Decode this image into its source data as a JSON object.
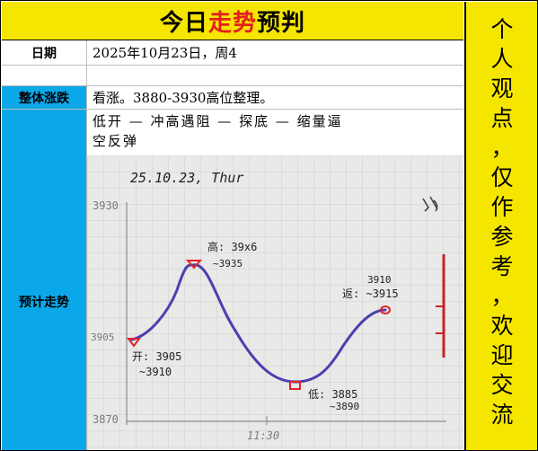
{
  "title": {
    "prefix": "今日",
    "highlight": "走势",
    "suffix": "预判"
  },
  "rows": {
    "date": {
      "label": "日期",
      "value": "2025年10月23日，周4"
    },
    "overall": {
      "label": "整体涨跌",
      "value": "看涨。3880-3930高位整理。"
    },
    "trend": {
      "label": "预计走势",
      "text_line1": "低开 — 冲高遇阻 — 探底 — 缩量逼",
      "text_line2": "空反弹"
    }
  },
  "side_note": [
    "个",
    "人",
    "观",
    "点",
    "，",
    "仅",
    "作",
    "参",
    "考",
    "，",
    "欢",
    "迎",
    "交",
    "流"
  ],
  "sketch": {
    "date_note": "25.10.23, Thur",
    "y_top": "3930",
    "y_mid": "3905",
    "y_bottom": "3870",
    "x_mark": "11:30",
    "label_right_top": "3915",
    "colors": {
      "curve": "#4b3fb0",
      "marker": "#e0242a",
      "scale": "#c8232a"
    },
    "annotations": {
      "open": {
        "line1": "开: 3905",
        "line2": "~3910"
      },
      "high": {
        "line1": "高: 39x6",
        "line2": "~3935"
      },
      "low": {
        "line1": "低: 3885",
        "line2": "~3890"
      },
      "rebound": {
        "line1": "3910",
        "line2": "返: ~3915"
      }
    }
  }
}
